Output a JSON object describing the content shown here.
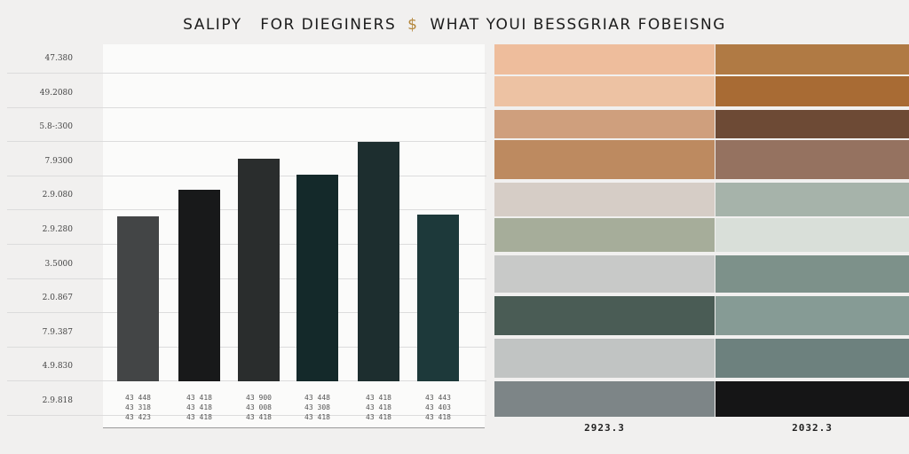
{
  "title": {
    "left": "SALIPY",
    "middle": "FOR DIEGINERS",
    "sep": "$",
    "right": "WHAT YOUI BESSGRIAR FOBEISNG"
  },
  "chart_data": {
    "type": "bar",
    "y_ticks": [
      "47.380",
      "49.2080",
      "5.8-:300",
      "7.9300",
      "2.9.080",
      "2.9.280",
      "3.5000",
      "2.0.867",
      "7.9.387",
      "4.9.830",
      "2.9.818"
    ],
    "ylim": [
      0,
      270
    ],
    "values": [
      186,
      216,
      251,
      233,
      270,
      188
    ],
    "colors": [
      "#434546",
      "#18191a",
      "#2a2d2d",
      "#14292a",
      "#1d2e2f",
      "#1d393a"
    ],
    "labels": [
      "43 448\n43 318\n43 423",
      "43 418\n43 418\n43 418",
      "43 900\n43 008\n43 418",
      "43 448\n43 308\n43 418",
      "43 418\n43 418\n43 418",
      "43 443\n43 403\n43 418"
    ]
  },
  "palettes": [
    {
      "label": "2923.3",
      "colors": [
        "#eebd9c",
        "#edc2a3",
        "#cf9f7d",
        "#bd8a60",
        "#d6cdc6",
        "#a6ad9a",
        "#c8c9c8",
        "#4a5c55",
        "#c1c4c3",
        "#7d8587"
      ]
    },
    {
      "label": "2032.3",
      "colors": [
        "#b07a44",
        "#a86b34",
        "#6d4a35",
        "#957260",
        "#a6b3aa",
        "#d9dfd9",
        "#7d918a",
        "#869b95",
        "#6d817e",
        "#151516"
      ]
    }
  ]
}
